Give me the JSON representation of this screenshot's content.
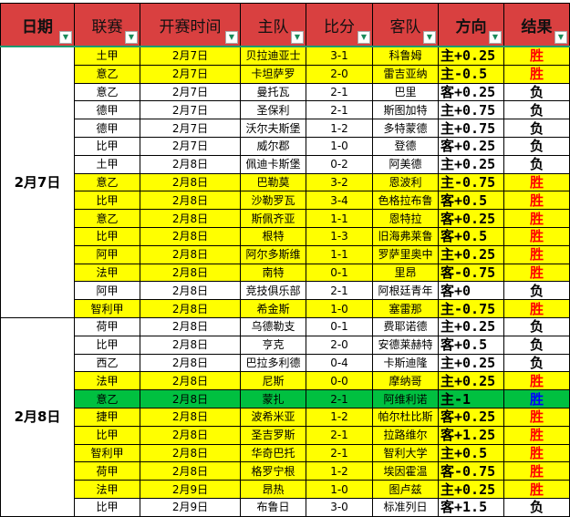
{
  "headers": [
    "日期",
    "联赛",
    "开赛时间",
    "主队",
    "比分",
    "客队",
    "方向",
    "结果"
  ],
  "colors": {
    "header": "#d94040",
    "win_row": "#ffff00",
    "highlight_row": "#00c040",
    "win_text": "#ff0000",
    "win_text_alt": "#0000ff",
    "lose_text": "#000000"
  },
  "groups": [
    {
      "date": "2月7日",
      "rows": [
        {
          "league": "土甲",
          "time": "2月7日",
          "home": "贝拉迪亚士",
          "score": "3-1",
          "away": "科鲁姆",
          "dir": "主+0.25",
          "result": "胜",
          "style": "win"
        },
        {
          "league": "意乙",
          "time": "2月7日",
          "home": "卡坦萨罗",
          "score": "2-0",
          "away": "雷吉亚纳",
          "dir": "主-0.5",
          "result": "胜",
          "style": "win"
        },
        {
          "league": "意乙",
          "time": "2月7日",
          "home": "曼托瓦",
          "score": "2-1",
          "away": "巴里",
          "dir": "客+0.25",
          "result": "负",
          "style": ""
        },
        {
          "league": "德甲",
          "time": "2月7日",
          "home": "圣保利",
          "score": "2-1",
          "away": "斯图加特",
          "dir": "主+0.75",
          "result": "负",
          "style": ""
        },
        {
          "league": "德甲",
          "time": "2月7日",
          "home": "沃尔夫斯堡",
          "score": "1-2",
          "away": "多特蒙德",
          "dir": "主+0.75",
          "result": "负",
          "style": ""
        },
        {
          "league": "比甲",
          "time": "2月7日",
          "home": "威尔郡",
          "score": "1-0",
          "away": "登德",
          "dir": "客+0.25",
          "result": "负",
          "style": ""
        },
        {
          "league": "土甲",
          "time": "2月8日",
          "home": "佩迪卡斯堡",
          "score": "0-2",
          "away": "阿美德",
          "dir": "主+0.25",
          "result": "负",
          "style": ""
        },
        {
          "league": "意乙",
          "time": "2月8日",
          "home": "巴勒莫",
          "score": "3-2",
          "away": "恩波利",
          "dir": "主-0.75",
          "result": "胜",
          "style": "win"
        },
        {
          "league": "比甲",
          "time": "2月8日",
          "home": "沙勒罗瓦",
          "score": "3-4",
          "away": "色格拉布鲁",
          "dir": "客+0.5",
          "result": "胜",
          "style": "win"
        },
        {
          "league": "意乙",
          "time": "2月8日",
          "home": "斯佩齐亚",
          "score": "1-1",
          "away": "恩特拉",
          "dir": "客+0.25",
          "result": "胜",
          "style": "win"
        },
        {
          "league": "比甲",
          "time": "2月8日",
          "home": "根特",
          "score": "1-3",
          "away": "旧海弗莱鲁",
          "dir": "客+0.5",
          "result": "胜",
          "style": "win"
        },
        {
          "league": "阿甲",
          "time": "2月8日",
          "home": "阿尔多斯维",
          "score": "1-1",
          "away": "罗萨里奥中",
          "dir": "主+0.25",
          "result": "胜",
          "style": "win"
        },
        {
          "league": "法甲",
          "time": "2月8日",
          "home": "南特",
          "score": "0-1",
          "away": "里昂",
          "dir": "客-0.75",
          "result": "胜",
          "style": "win"
        },
        {
          "league": "阿甲",
          "time": "2月8日",
          "home": "竞技俱乐部",
          "score": "2-1",
          "away": "阿根廷青年",
          "dir": "客+0",
          "result": "负",
          "style": ""
        },
        {
          "league": "智利甲",
          "time": "2月8日",
          "home": "希金斯",
          "score": "1-0",
          "away": "塞雷那",
          "dir": "主-0.75",
          "result": "胜",
          "style": "win"
        }
      ]
    },
    {
      "date": "2月8日",
      "rows": [
        {
          "league": "荷甲",
          "time": "2月8日",
          "home": "乌德勒支",
          "score": "0-1",
          "away": "费耶诺德",
          "dir": "主+0.25",
          "result": "负",
          "style": ""
        },
        {
          "league": "比甲",
          "time": "2月8日",
          "home": "亨克",
          "score": "2-0",
          "away": "安德莱赫特",
          "dir": "客+0.5",
          "result": "负",
          "style": ""
        },
        {
          "league": "西乙",
          "time": "2月8日",
          "home": "巴拉多利德",
          "score": "0-4",
          "away": "卡斯迪隆",
          "dir": "主+0.25",
          "result": "负",
          "style": ""
        },
        {
          "league": "法甲",
          "time": "2月8日",
          "home": "尼斯",
          "score": "0-0",
          "away": "摩纳哥",
          "dir": "主+0.25",
          "result": "胜",
          "style": "win"
        },
        {
          "league": "意乙",
          "time": "2月8日",
          "home": "蒙扎",
          "score": "2-1",
          "away": "阿维利诺",
          "dir": "主-1",
          "result": "胜",
          "style": "green"
        },
        {
          "league": "捷甲",
          "time": "2月8日",
          "home": "波希米亚",
          "score": "1-2",
          "away": "帕尔杜比斯",
          "dir": "客+0.25",
          "result": "胜",
          "style": "win"
        },
        {
          "league": "比甲",
          "time": "2月8日",
          "home": "圣吉罗斯",
          "score": "2-1",
          "away": "拉路维尔",
          "dir": "客+1.25",
          "result": "胜",
          "style": "win"
        },
        {
          "league": "智利甲",
          "time": "2月8日",
          "home": "华奇巴托",
          "score": "2-1",
          "away": "智利大学",
          "dir": "主+0.5",
          "result": "胜",
          "style": "win"
        },
        {
          "league": "荷甲",
          "time": "2月8日",
          "home": "格罗宁根",
          "score": "1-2",
          "away": "埃因霍温",
          "dir": "客-0.75",
          "result": "胜",
          "style": "win"
        },
        {
          "league": "法甲",
          "time": "2月9日",
          "home": "昂热",
          "score": "1-0",
          "away": "图卢兹",
          "dir": "主+0.25",
          "result": "胜",
          "style": "win"
        },
        {
          "league": "比甲",
          "time": "2月9日",
          "home": "布鲁日",
          "score": "3-0",
          "away": "标准列日",
          "dir": "客+1.5",
          "result": "负",
          "style": ""
        }
      ]
    }
  ]
}
